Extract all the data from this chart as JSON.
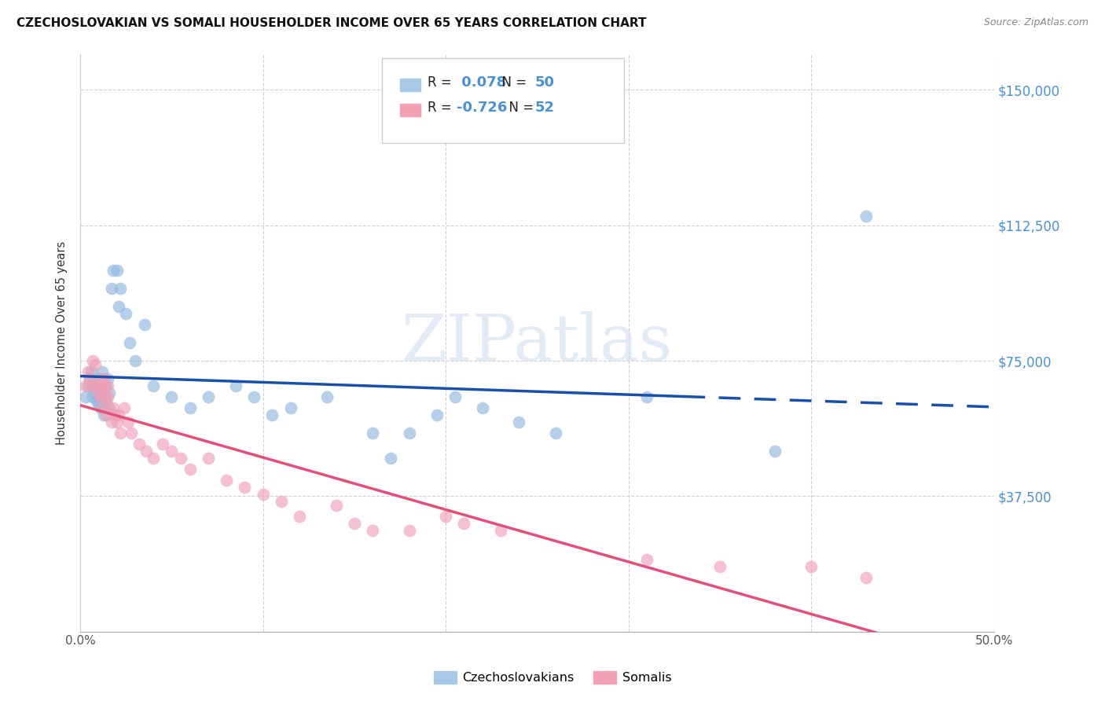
{
  "title": "CZECHOSLOVAKIAN VS SOMALI HOUSEHOLDER INCOME OVER 65 YEARS CORRELATION CHART",
  "source": "Source: ZipAtlas.com",
  "ylabel": "Householder Income Over 65 years",
  "xlim": [
    0.0,
    0.5
  ],
  "ylim": [
    0,
    160000
  ],
  "ylabel_ticks_labels": [
    "$37,500",
    "$75,000",
    "$112,500",
    "$150,000"
  ],
  "ylabel_ticks_vals": [
    37500,
    75000,
    112500,
    150000
  ],
  "xlabel_ticks_labels": [
    "0.0%",
    "50.0%"
  ],
  "xlabel_ticks_vals": [
    0.0,
    0.5
  ],
  "legend_entries": [
    {
      "label": "Czechoslovakians",
      "r": " 0.078",
      "n": "50",
      "color": "#a8c8e8"
    },
    {
      "label": "Somalis",
      "r": "-0.726",
      "n": "52",
      "color": "#f4a0b5"
    }
  ],
  "blue_dot_color": "#90b8e0",
  "pink_dot_color": "#f0a0b8",
  "blue_line_color": "#1a4faa",
  "pink_line_color": "#e0507a",
  "blue_line_dash_split": 0.33,
  "watermark_text": "ZIPatlas",
  "watermark_color": "#d0dff0",
  "r_n_color": "#4a90d9",
  "czech_x": [
    0.003,
    0.004,
    0.005,
    0.006,
    0.007,
    0.007,
    0.008,
    0.009,
    0.01,
    0.01,
    0.011,
    0.011,
    0.012,
    0.012,
    0.013,
    0.013,
    0.014,
    0.014,
    0.015,
    0.015,
    0.016,
    0.017,
    0.018,
    0.02,
    0.021,
    0.022,
    0.025,
    0.027,
    0.03,
    0.035,
    0.04,
    0.05,
    0.06,
    0.07,
    0.085,
    0.095,
    0.105,
    0.115,
    0.135,
    0.16,
    0.17,
    0.18,
    0.195,
    0.205,
    0.22,
    0.24,
    0.26,
    0.31,
    0.38,
    0.43
  ],
  "czech_y": [
    65000,
    68000,
    70000,
    72000,
    65000,
    68000,
    66000,
    64000,
    70000,
    63000,
    62000,
    66000,
    68000,
    72000,
    65000,
    60000,
    68000,
    64000,
    62000,
    70000,
    66000,
    95000,
    100000,
    100000,
    90000,
    95000,
    88000,
    80000,
    75000,
    85000,
    68000,
    65000,
    62000,
    65000,
    68000,
    65000,
    60000,
    62000,
    65000,
    55000,
    48000,
    55000,
    60000,
    65000,
    62000,
    58000,
    55000,
    65000,
    50000,
    115000
  ],
  "somali_x": [
    0.003,
    0.004,
    0.005,
    0.006,
    0.007,
    0.008,
    0.009,
    0.01,
    0.011,
    0.011,
    0.012,
    0.012,
    0.013,
    0.013,
    0.014,
    0.014,
    0.015,
    0.015,
    0.016,
    0.017,
    0.018,
    0.019,
    0.02,
    0.021,
    0.022,
    0.024,
    0.026,
    0.028,
    0.032,
    0.036,
    0.04,
    0.045,
    0.05,
    0.055,
    0.06,
    0.07,
    0.08,
    0.09,
    0.1,
    0.11,
    0.12,
    0.14,
    0.15,
    0.16,
    0.18,
    0.2,
    0.21,
    0.23,
    0.31,
    0.35,
    0.4,
    0.43
  ],
  "somali_y": [
    68000,
    72000,
    70000,
    68000,
    75000,
    74000,
    68000,
    66000,
    70000,
    65000,
    68000,
    62000,
    70000,
    68000,
    65000,
    60000,
    68000,
    65000,
    62000,
    58000,
    62000,
    60000,
    58000,
    60000,
    55000,
    62000,
    58000,
    55000,
    52000,
    50000,
    48000,
    52000,
    50000,
    48000,
    45000,
    48000,
    42000,
    40000,
    38000,
    36000,
    32000,
    35000,
    30000,
    28000,
    28000,
    32000,
    30000,
    28000,
    20000,
    18000,
    18000,
    15000
  ]
}
